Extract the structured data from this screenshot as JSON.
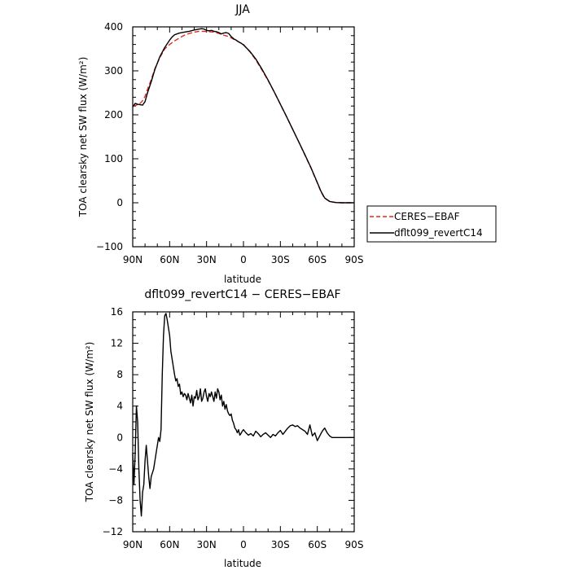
{
  "chart_data": [
    {
      "type": "line",
      "title": "JJA",
      "xlabel": "latitude",
      "ylabel": "TOA clearsky net SW flux (W/m²)",
      "xlim": [
        90,
        -90
      ],
      "ylim": [
        -100,
        400
      ],
      "x_ticks": [
        90,
        60,
        30,
        0,
        -30,
        -60,
        -90
      ],
      "x_tick_labels": [
        "90N",
        "60N",
        "30N",
        "0",
        "30S",
        "60S",
        "90S"
      ],
      "y_ticks": [
        -100,
        0,
        100,
        200,
        300,
        400
      ],
      "y_tick_labels": [
        "−100",
        "0",
        "100",
        "200",
        "300",
        "400"
      ],
      "legend_position": "right",
      "series": [
        {
          "name": "CERES−EBAF",
          "color": "#e8261f",
          "dash": "dashed",
          "x": [
            90,
            87,
            84,
            82,
            80,
            78,
            75,
            72,
            68,
            64,
            60,
            56,
            52,
            48,
            44,
            40,
            36,
            32,
            28,
            24,
            20,
            16,
            12,
            8,
            4,
            0,
            -5,
            -10,
            -15,
            -20,
            -25,
            -30,
            -35,
            -40,
            -45,
            -50,
            -55,
            -60,
            -63,
            -66,
            -70,
            -75,
            -80,
            -85,
            -90
          ],
          "y": [
            220,
            222,
            226,
            232,
            242,
            258,
            280,
            305,
            330,
            350,
            360,
            368,
            375,
            381,
            385,
            388,
            390,
            390,
            389,
            388,
            385,
            381,
            378,
            372,
            366,
            360,
            344,
            325,
            302,
            278,
            252,
            224,
            196,
            167,
            138,
            108,
            78,
            45,
            25,
            10,
            3,
            0.5,
            0,
            0,
            0
          ]
        },
        {
          "name": "dflt099_revertC14",
          "color": "#000000",
          "dash": "solid",
          "x": [
            90,
            88,
            86,
            84,
            82,
            80,
            78,
            75,
            72,
            68,
            64,
            60,
            58,
            56,
            52,
            48,
            44,
            40,
            36,
            34,
            32,
            30,
            28,
            26,
            24,
            22,
            20,
            18,
            16,
            14,
            12,
            10,
            8,
            6,
            4,
            2,
            0,
            -5,
            -10,
            -15,
            -20,
            -25,
            -30,
            -35,
            -40,
            -45,
            -50,
            -55,
            -60,
            -63,
            -66,
            -70,
            -75,
            -80,
            -85,
            -90
          ],
          "y": [
            218,
            226,
            224,
            223,
            222,
            230,
            250,
            275,
            303,
            332,
            353,
            370,
            377,
            382,
            386,
            388,
            390,
            393,
            395,
            396,
            395,
            392,
            391,
            392,
            390,
            389,
            387,
            384,
            386,
            387,
            385,
            378,
            373,
            370,
            366,
            363,
            359,
            345,
            327,
            304,
            279,
            252,
            224,
            196,
            167,
            138,
            109,
            79,
            46,
            26,
            11,
            3,
            0.5,
            0,
            0,
            0
          ]
        }
      ]
    },
    {
      "type": "line",
      "title": "dflt099_revertC14 − CERES−EBAF",
      "xlabel": "latitude",
      "ylabel": "TOA clearsky net SW flux (W/m²)",
      "xlim": [
        90,
        -90
      ],
      "ylim": [
        -12,
        16
      ],
      "x_ticks": [
        90,
        60,
        30,
        0,
        -30,
        -60,
        -90
      ],
      "x_tick_labels": [
        "90N",
        "60N",
        "30N",
        "0",
        "30S",
        "60S",
        "90S"
      ],
      "y_ticks": [
        -12,
        -8,
        -4,
        0,
        4,
        8,
        12,
        16
      ],
      "y_tick_labels": [
        "−12",
        "−8",
        "−4",
        "0",
        "4",
        "8",
        "12",
        "16"
      ],
      "series": [
        {
          "name": "",
          "color": "#000000",
          "dash": "solid",
          "x": [
            90,
            89,
            88,
            87,
            86,
            85,
            84,
            83,
            82,
            81,
            80,
            79,
            78,
            77,
            76,
            75,
            74,
            73,
            72,
            71,
            70,
            69,
            68,
            67,
            66,
            65,
            64,
            63,
            62,
            61,
            60,
            59,
            58,
            57,
            56,
            55,
            54,
            53,
            52,
            51,
            50,
            49,
            48,
            47,
            46,
            45,
            44,
            43,
            42,
            41,
            40,
            39,
            38,
            37,
            36,
            35,
            34,
            33,
            32,
            31,
            30,
            29,
            28,
            27,
            26,
            25,
            24,
            23,
            22,
            21,
            20,
            19,
            18,
            17,
            16,
            15,
            14,
            13,
            12,
            11,
            10,
            9,
            8,
            7,
            6,
            5,
            4,
            3,
            2,
            1,
            0,
            -2,
            -4,
            -6,
            -8,
            -10,
            -12,
            -14,
            -16,
            -18,
            -20,
            -22,
            -24,
            -26,
            -28,
            -30,
            -32,
            -34,
            -36,
            -38,
            -40,
            -42,
            -44,
            -46,
            -48,
            -50,
            -52,
            -54,
            -56,
            -58,
            -60,
            -62,
            -64,
            -66,
            -68,
            -70,
            -72,
            -74,
            -76,
            -78,
            -80,
            -82,
            -84,
            -86,
            -88,
            -90
          ],
          "y": [
            -2,
            -6,
            -2,
            4,
            2,
            -4,
            -8,
            -10,
            -7,
            -6,
            -3,
            -1,
            -3,
            -5,
            -6.5,
            -5,
            -4.5,
            -4,
            -3,
            -2,
            -1,
            0,
            -0.5,
            1,
            8,
            13,
            15.5,
            15.8,
            15,
            14,
            13,
            11,
            10,
            9,
            8,
            7.2,
            7.5,
            6.5,
            6.8,
            5.5,
            5.8,
            5.2,
            5.6,
            5.4,
            4.8,
            5.6,
            5.0,
            4.4,
            5.4,
            4.0,
            5.2,
            5.0,
            6.0,
            4.8,
            5.2,
            6.2,
            4.6,
            5.0,
            5.8,
            6.2,
            5.2,
            4.6,
            5.6,
            5.2,
            5.8,
            5.2,
            4.6,
            5.8,
            5.0,
            6.2,
            5.8,
            4.8,
            5.4,
            4.0,
            4.6,
            3.6,
            4.2,
            3.4,
            3.0,
            2.8,
            3.0,
            2.2,
            1.8,
            1.2,
            1.0,
            0.6,
            1.0,
            0.3,
            0.5,
            0.8,
            1.0,
            0.6,
            0.3,
            0.5,
            0.2,
            0.8,
            0.5,
            0.1,
            0.4,
            0.6,
            0.3,
            0.0,
            0.4,
            0.2,
            0.6,
            0.9,
            0.4,
            0.8,
            1.2,
            1.5,
            1.6,
            1.4,
            1.5,
            1.2,
            1.0,
            0.8,
            0.4,
            1.6,
            0.2,
            0.6,
            -0.4,
            0.2,
            0.8,
            1.2,
            0.6,
            0.2,
            0.0,
            0.0,
            0.0,
            0.0,
            0.0,
            0.0,
            0.0,
            0.0,
            0.0,
            0.0
          ]
        }
      ]
    }
  ]
}
